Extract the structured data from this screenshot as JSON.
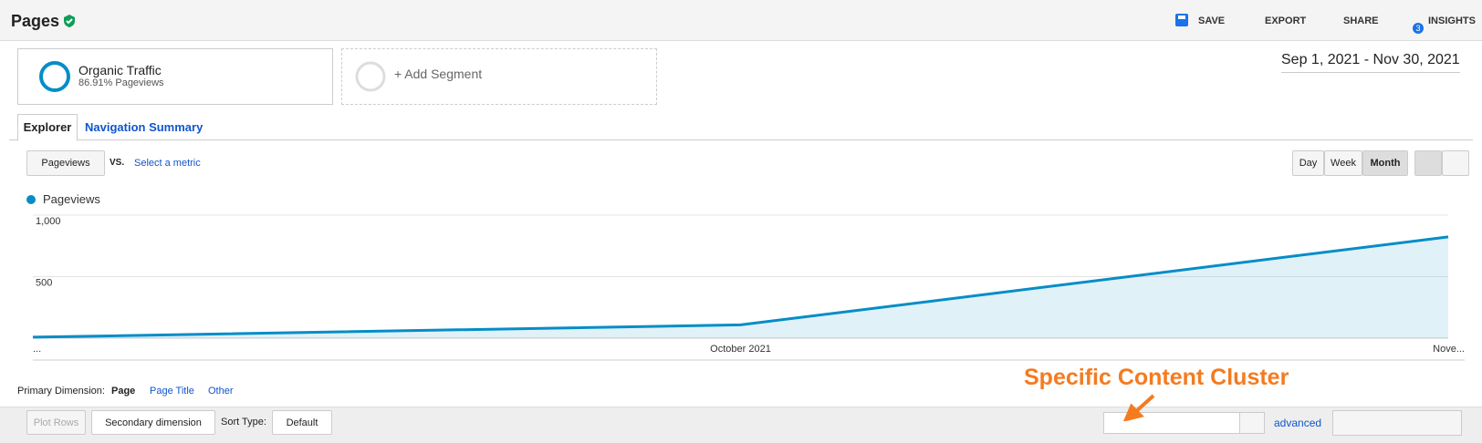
{
  "header": {
    "title": "Pages",
    "actions": [
      "SAVE",
      "EXPORT",
      "SHARE",
      "INSIGHTS"
    ],
    "insights_badge": "3"
  },
  "segments": [
    {
      "name": "Organic Traffic",
      "detail": "86.91% Pageviews"
    },
    {
      "name": "+ Add Segment"
    }
  ],
  "date_range": "Sep 1, 2021 - Nov 30, 2021",
  "tabs": [
    "Explorer",
    "Navigation Summary"
  ],
  "metric_bar": {
    "metric": "Pageviews",
    "vs": "VS.",
    "select": "Select a metric",
    "periods": [
      "Day",
      "Week",
      "Month"
    ]
  },
  "chart_data": {
    "type": "area",
    "categories": [
      "...",
      "October 2021",
      "Nove..."
    ],
    "series": [
      {
        "name": "Pageviews",
        "color": "#058dc7",
        "values": [
          8,
          108,
          823
        ]
      }
    ],
    "ylim": [
      0,
      1000
    ],
    "yticks": [
      {
        "value": 1000,
        "label": "1,000"
      },
      500
    ],
    "grid": true
  },
  "table_controls": {
    "primary_dimension_label": "Primary Dimension:",
    "dimensions": [
      "Page",
      "Page Title",
      "Other"
    ],
    "plot_rows": "Plot Rows",
    "secondary": "Secondary dimension",
    "sort_type_label": "Sort Type:",
    "sort_type": "Default",
    "advanced": "advanced"
  },
  "annotation": "Specific Content Cluster"
}
